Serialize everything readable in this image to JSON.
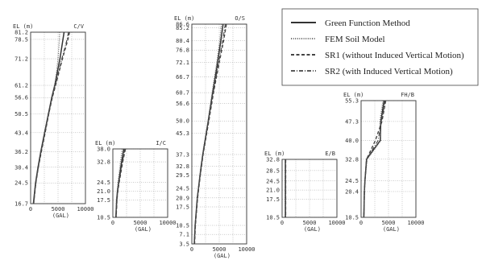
{
  "legend": {
    "entries": [
      {
        "label": "Green Function Method",
        "style": "solid"
      },
      {
        "label": "FEM Soil Model",
        "style": "dotted"
      },
      {
        "label": "SR1 (without Induced Vertical Motion)",
        "style": "dashed"
      },
      {
        "label": "SR2 (with Induced Vertical Motion)",
        "style": "dashdot"
      }
    ]
  },
  "chart_data": [
    {
      "type": "line",
      "title": "C/V",
      "ylabel": "EL (m)",
      "xlabel": "(GAL)",
      "ylim": [
        16.7,
        81.2
      ],
      "xlim": [
        0,
        10000
      ],
      "y_ticks": [
        81.2,
        78.5,
        71.2,
        61.2,
        56.6,
        50.5,
        43.4,
        36.2,
        30.4,
        24.5,
        16.7
      ],
      "x_ticks": [
        0,
        5000,
        10000
      ],
      "elevations": [
        81.2,
        78.5,
        71.2,
        61.2,
        56.6,
        50.5,
        43.4,
        36.2,
        30.4,
        24.5,
        16.7
      ],
      "series": [
        {
          "name": "Green Function Method",
          "values": [
            6100,
            5900,
            5350,
            4400,
            3850,
            3250,
            2550,
            1850,
            1350,
            900,
            500
          ]
        },
        {
          "name": "FEM Soil Model",
          "values": [
            5300,
            5250,
            5000,
            4450,
            3900,
            3300,
            2600,
            1900,
            1400,
            950,
            550
          ]
        },
        {
          "name": "SR1 (without Induced Vertical Motion)",
          "values": [
            7100,
            6800,
            5800,
            4550,
            3950,
            3300,
            2650,
            1950,
            1400,
            950,
            550
          ]
        },
        {
          "name": "SR2 (with Induced Vertical Motion)",
          "values": [
            6900,
            6650,
            5700,
            4500,
            3900,
            3300,
            2600,
            1900,
            1400,
            950,
            550
          ]
        }
      ]
    },
    {
      "type": "line",
      "title": "I/C",
      "ylabel": "EL (m)",
      "xlabel": "(GAL)",
      "ylim": [
        10.5,
        38.0
      ],
      "xlim": [
        0,
        10000
      ],
      "y_ticks": [
        38.0,
        32.8,
        24.5,
        21.0,
        17.5,
        10.5
      ],
      "x_ticks": [
        0,
        5000,
        10000
      ],
      "elevations": [
        38.0,
        32.8,
        24.5,
        21.0,
        17.5,
        10.5
      ],
      "series": [
        {
          "name": "Green Function Method",
          "values": [
            2000,
            1600,
            1050,
            850,
            700,
            550
          ]
        },
        {
          "name": "FEM Soil Model",
          "values": [
            1700,
            1400,
            950,
            800,
            650,
            550
          ]
        },
        {
          "name": "SR1 (without Induced Vertical Motion)",
          "values": [
            2300,
            1800,
            1150,
            900,
            750,
            600
          ]
        },
        {
          "name": "SR2 (with Induced Vertical Motion)",
          "values": [
            2200,
            1750,
            1100,
            900,
            750,
            600
          ]
        }
      ]
    },
    {
      "type": "line",
      "title": "O/S",
      "ylabel": "EL (m)",
      "xlabel": "(GAL)",
      "ylim": [
        3.5,
        86.6
      ],
      "xlim": [
        0,
        10000
      ],
      "y_ticks": [
        86.6,
        85.2,
        80.4,
        76.8,
        72.1,
        66.7,
        60.7,
        56.6,
        50.0,
        45.3,
        37.3,
        32.8,
        29.5,
        24.5,
        20.9,
        17.5,
        10.5,
        7.1,
        3.5
      ],
      "x_ticks": [
        0,
        5000,
        10000
      ],
      "elevations": [
        86.6,
        80.4,
        72.1,
        60.7,
        50.0,
        37.3,
        29.5,
        20.9,
        10.5,
        3.5
      ],
      "series": [
        {
          "name": "Green Function Method",
          "values": [
            5700,
            5300,
            4700,
            3800,
            3000,
            2000,
            1500,
            1000,
            600,
            450
          ]
        },
        {
          "name": "FEM Soil Model",
          "values": [
            5400,
            5100,
            4550,
            3700,
            2950,
            1950,
            1450,
            1000,
            600,
            450
          ]
        },
        {
          "name": "SR1 (without Induced Vertical Motion)",
          "values": [
            6300,
            5800,
            5000,
            3950,
            3100,
            2050,
            1550,
            1050,
            650,
            500
          ]
        },
        {
          "name": "SR2 (with Induced Vertical Motion)",
          "values": [
            6100,
            5650,
            4900,
            3900,
            3050,
            2000,
            1500,
            1000,
            600,
            450
          ]
        }
      ]
    },
    {
      "type": "line",
      "title": "E/B",
      "ylabel": "EL (m)",
      "xlabel": "(GAL)",
      "ylim": [
        10.5,
        32.8
      ],
      "xlim": [
        0,
        10000
      ],
      "y_ticks": [
        32.8,
        28.5,
        24.5,
        21.0,
        17.5,
        10.5
      ],
      "x_ticks": [
        0,
        5000,
        10000
      ],
      "elevations": [
        32.8,
        28.5,
        24.5,
        21.0,
        17.5,
        10.5
      ],
      "series": [
        {
          "name": "Green Function Method",
          "values": [
            600,
            600,
            600,
            600,
            600,
            600
          ]
        },
        {
          "name": "FEM Soil Model",
          "values": [
            550,
            550,
            550,
            550,
            550,
            550
          ]
        },
        {
          "name": "SR1 (without Induced Vertical Motion)",
          "values": [
            650,
            650,
            650,
            650,
            650,
            650
          ]
        },
        {
          "name": "SR2 (with Induced Vertical Motion)",
          "values": [
            620,
            620,
            620,
            620,
            620,
            620
          ]
        }
      ]
    },
    {
      "type": "line",
      "title": "FH/B",
      "ylabel": "EL (m)",
      "xlabel": "(GAL)",
      "ylim": [
        10.5,
        55.3
      ],
      "xlim": [
        0,
        10000
      ],
      "y_ticks": [
        55.3,
        47.3,
        40.0,
        32.8,
        24.5,
        20.4,
        10.5
      ],
      "x_ticks": [
        0,
        5000,
        10000
      ],
      "elevations": [
        55.3,
        47.3,
        40.0,
        32.8,
        24.5,
        20.4,
        10.5
      ],
      "series": [
        {
          "name": "Green Function Method",
          "values": [
            4200,
            3600,
            3500,
            1000,
            700,
            600,
            500
          ]
        },
        {
          "name": "FEM Soil Model",
          "values": [
            4000,
            3400,
            3600,
            1100,
            700,
            600,
            500
          ]
        },
        {
          "name": "SR1 (without Induced Vertical Motion)",
          "values": [
            4500,
            3800,
            2600,
            1000,
            700,
            600,
            500
          ]
        },
        {
          "name": "SR2 (with Induced Vertical Motion)",
          "values": [
            4400,
            3700,
            3100,
            1000,
            700,
            600,
            500
          ]
        }
      ]
    }
  ]
}
